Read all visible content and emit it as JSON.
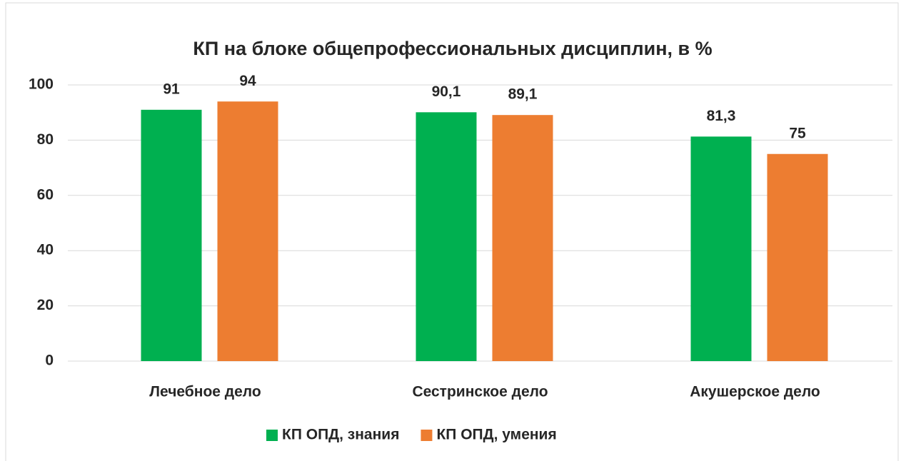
{
  "chart_data": {
    "type": "bar",
    "title": "КП на блоке общепрофессиональных дисциплин, в %",
    "categories": [
      "Лечебное дело",
      "Сестринское дело",
      "Акушерское дело"
    ],
    "series": [
      {
        "name": "КП ОПД, знания",
        "color": "#00b050",
        "values": [
          91,
          90.1,
          81.3
        ],
        "value_labels": [
          "91",
          "90,1",
          "81,3"
        ]
      },
      {
        "name": "КП ОПД, умения",
        "color": "#ed7d31",
        "values": [
          94,
          89.1,
          75
        ],
        "value_labels": [
          "94",
          "89,1",
          "75"
        ]
      }
    ],
    "ylim": [
      0,
      100
    ],
    "yticks": [
      0,
      20,
      40,
      60,
      80,
      100
    ],
    "grid": true,
    "legend": "bottom"
  }
}
